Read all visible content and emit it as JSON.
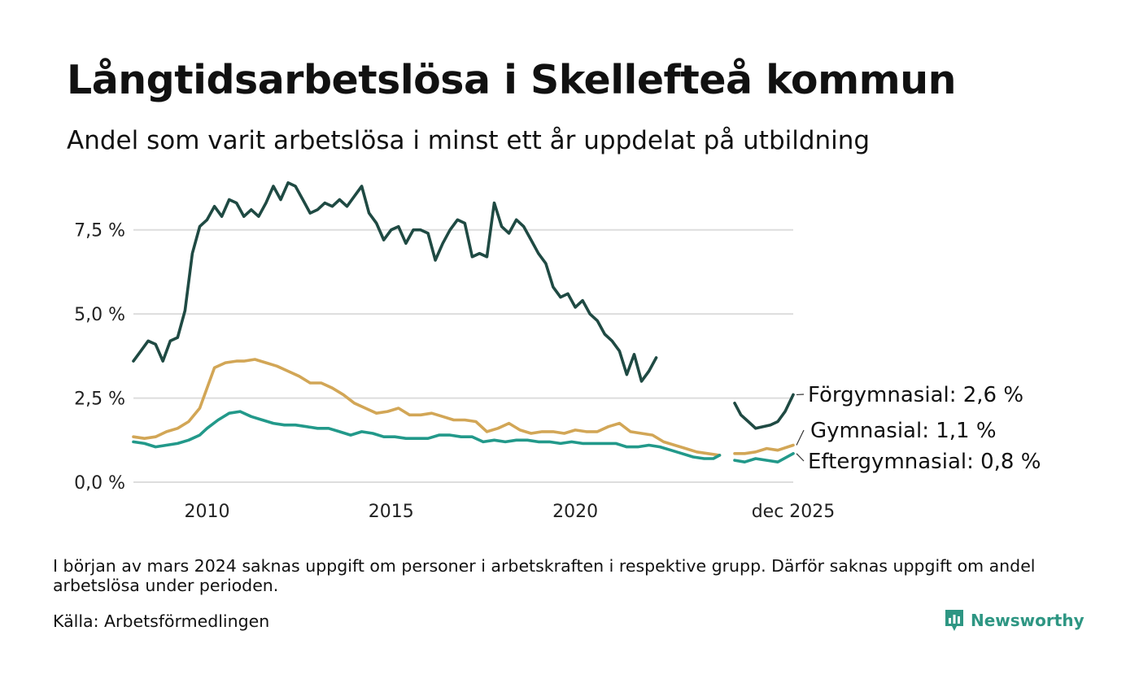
{
  "header": {
    "title": "Långtidsarbetslösa i Skellefteå kommun",
    "subtitle": "Andel som varit arbetslösa i minst ett år uppdelat på utbildning"
  },
  "footer": {
    "note": "I början av mars 2024 saknas uppgift om personer i arbetskraften i respektive grupp. Därför saknas uppgift om andel arbetslösa under perioden.",
    "source": "Källa: Arbetsförmedlingen",
    "brand": "Newsworthy"
  },
  "colors": {
    "forgymnasial": "#1f4a43",
    "gymnasial": "#d2a656",
    "eftergymnasial": "#22998a",
    "grid": "#dddddd",
    "brand": "#2e9683"
  },
  "chart_data": {
    "type": "line",
    "title": "Långtidsarbetslösa i Skellefteå kommun",
    "xlabel": "",
    "ylabel": "",
    "x_ticks": [
      {
        "value": 2010,
        "label": "2010"
      },
      {
        "value": 2015,
        "label": "2015"
      },
      {
        "value": 2020,
        "label": "2020"
      },
      {
        "value": 2025.92,
        "label": "dec 2025"
      }
    ],
    "y_ticks": [
      {
        "value": 0,
        "label": "0,0 %"
      },
      {
        "value": 2.5,
        "label": "2,5 %"
      },
      {
        "value": 5,
        "label": "5,0 %"
      },
      {
        "value": 7.5,
        "label": "7,5 %"
      }
    ],
    "xlim": [
      2008.0,
      2025.92
    ],
    "ylim": [
      0,
      9.5
    ],
    "gap": [
      2024.0,
      2024.33
    ],
    "series": [
      {
        "name": "Förgymnasial",
        "end_label": "Förgymnasial: 2,6 %",
        "color": "#1f4a43",
        "x": [
          2008.0,
          2008.2,
          2008.4,
          2008.6,
          2008.8,
          2009.0,
          2009.2,
          2009.4,
          2009.6,
          2009.8,
          2010.0,
          2010.2,
          2010.4,
          2010.6,
          2010.8,
          2011.0,
          2011.2,
          2011.4,
          2011.6,
          2011.8,
          2012.0,
          2012.2,
          2012.4,
          2012.6,
          2012.8,
          2013.0,
          2013.2,
          2013.4,
          2013.6,
          2013.8,
          2014.0,
          2014.2,
          2014.4,
          2014.6,
          2014.8,
          2015.0,
          2015.2,
          2015.4,
          2015.6,
          2015.8,
          2016.0,
          2016.2,
          2016.4,
          2016.6,
          2016.8,
          2017.0,
          2017.2,
          2017.4,
          2017.6,
          2017.8,
          2018.0,
          2018.2,
          2018.4,
          2018.6,
          2018.8,
          2019.0,
          2019.2,
          2019.4,
          2019.6,
          2019.8,
          2020.0,
          2020.2,
          2020.4,
          2020.6,
          2020.8,
          2021.0,
          2021.2,
          2021.4,
          2021.6,
          2021.8,
          2022.0,
          2022.2,
          2022.4,
          2022.6,
          2022.8,
          2023.0,
          2023.2,
          2023.4,
          2023.6,
          2023.75,
          2023.92,
          null,
          2024.33,
          2024.5,
          2024.7,
          2024.9,
          2025.1,
          2025.3,
          2025.5,
          2025.7,
          2025.92
        ],
        "values": [
          3.6,
          3.9,
          4.2,
          4.1,
          3.6,
          4.2,
          4.3,
          5.1,
          6.8,
          7.6,
          7.8,
          8.2,
          7.9,
          8.4,
          8.3,
          7.9,
          8.1,
          7.9,
          8.3,
          8.8,
          8.4,
          8.9,
          8.8,
          8.4,
          8.0,
          8.1,
          8.3,
          8.2,
          8.4,
          8.2,
          8.5,
          8.8,
          8.0,
          7.7,
          7.2,
          7.5,
          7.6,
          7.1,
          7.5,
          7.5,
          7.4,
          6.6,
          7.1,
          7.5,
          7.8,
          7.7,
          6.7,
          6.8,
          6.7,
          8.3,
          7.6,
          7.4,
          7.8,
          7.6,
          7.2,
          6.8,
          6.5,
          5.8,
          5.5,
          5.6,
          5.2,
          5.4,
          5.0,
          4.8,
          4.4,
          4.2,
          3.9,
          3.2,
          3.8,
          3.0,
          3.3,
          3.7,
          null,
          null,
          null,
          null,
          null,
          null,
          null,
          null,
          null,
          null,
          2.35,
          2.0,
          1.8,
          1.6,
          1.65,
          1.7,
          1.8,
          2.1,
          2.6
        ],
        "values_note": "Förgymnasial series"
      },
      {
        "name": "Gymnasial",
        "end_label": "Gymnasial: 1,1 %",
        "color": "#d2a656",
        "x": [
          2008.0,
          2008.3,
          2008.6,
          2008.9,
          2009.2,
          2009.5,
          2009.8,
          2010.0,
          2010.2,
          2010.5,
          2010.8,
          2011.0,
          2011.3,
          2011.6,
          2011.9,
          2012.2,
          2012.5,
          2012.8,
          2013.1,
          2013.4,
          2013.7,
          2014.0,
          2014.3,
          2014.6,
          2014.9,
          2015.2,
          2015.5,
          2015.8,
          2016.1,
          2016.4,
          2016.7,
          2017.0,
          2017.3,
          2017.6,
          2017.9,
          2018.2,
          2018.5,
          2018.8,
          2019.1,
          2019.4,
          2019.7,
          2020.0,
          2020.3,
          2020.6,
          2020.9,
          2021.2,
          2021.5,
          2021.8,
          2022.1,
          2022.4,
          2022.7,
          2023.0,
          2023.3,
          2023.6,
          2023.92,
          null,
          2024.33,
          2024.6,
          2024.9,
          2025.2,
          2025.5,
          2025.92
        ],
        "values": [
          1.35,
          1.3,
          1.35,
          1.5,
          1.6,
          1.8,
          2.2,
          2.8,
          3.4,
          3.55,
          3.6,
          3.6,
          3.65,
          3.55,
          3.45,
          3.3,
          3.15,
          2.95,
          2.95,
          2.8,
          2.6,
          2.35,
          2.2,
          2.05,
          2.1,
          2.2,
          2.0,
          2.0,
          2.05,
          1.95,
          1.85,
          1.85,
          1.8,
          1.5,
          1.6,
          1.75,
          1.55,
          1.45,
          1.5,
          1.5,
          1.45,
          1.55,
          1.5,
          1.5,
          1.65,
          1.75,
          1.5,
          1.45,
          1.4,
          1.2,
          1.1,
          1.0,
          0.9,
          0.85,
          0.8,
          null,
          0.85,
          0.85,
          0.9,
          1.0,
          0.95,
          1.1
        ]
      },
      {
        "name": "Eftergymnasial",
        "end_label": "Eftergymnasial: 0,8 %",
        "color": "#22998a",
        "x": [
          2008.0,
          2008.3,
          2008.6,
          2008.9,
          2009.2,
          2009.5,
          2009.8,
          2010.0,
          2010.3,
          2010.6,
          2010.9,
          2011.2,
          2011.5,
          2011.8,
          2012.1,
          2012.4,
          2012.7,
          2013.0,
          2013.3,
          2013.6,
          2013.9,
          2014.2,
          2014.5,
          2014.8,
          2015.1,
          2015.4,
          2015.7,
          2016.0,
          2016.3,
          2016.6,
          2016.9,
          2017.2,
          2017.5,
          2017.8,
          2018.1,
          2018.4,
          2018.7,
          2019.0,
          2019.3,
          2019.6,
          2019.9,
          2020.2,
          2020.5,
          2020.8,
          2021.1,
          2021.4,
          2021.7,
          2022.0,
          2022.3,
          2022.6,
          2022.9,
          2023.2,
          2023.5,
          2023.75,
          2023.92,
          null,
          2024.33,
          2024.6,
          2024.9,
          2025.2,
          2025.5,
          2025.92
        ],
        "values": [
          1.2,
          1.15,
          1.05,
          1.1,
          1.15,
          1.25,
          1.4,
          1.6,
          1.85,
          2.05,
          2.1,
          1.95,
          1.85,
          1.75,
          1.7,
          1.7,
          1.65,
          1.6,
          1.6,
          1.5,
          1.4,
          1.5,
          1.45,
          1.35,
          1.35,
          1.3,
          1.3,
          1.3,
          1.4,
          1.4,
          1.35,
          1.35,
          1.2,
          1.25,
          1.2,
          1.25,
          1.25,
          1.2,
          1.2,
          1.15,
          1.2,
          1.15,
          1.15,
          1.15,
          1.15,
          1.05,
          1.05,
          1.1,
          1.05,
          0.95,
          0.85,
          0.75,
          0.7,
          0.7,
          0.8,
          null,
          0.65,
          0.6,
          0.7,
          0.65,
          0.6,
          0.85
        ]
      }
    ]
  }
}
